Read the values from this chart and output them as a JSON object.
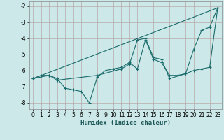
{
  "title": "",
  "xlabel": "Humidex (Indice chaleur)",
  "bg_color": "#cce8e8",
  "grid_color": "#b8a8a8",
  "line_color": "#1a6b6b",
  "xlim": [
    -0.5,
    23.5
  ],
  "ylim": [
    -8.4,
    -1.7
  ],
  "yticks": [
    -8,
    -7,
    -6,
    -5,
    -4,
    -3,
    -2
  ],
  "xticks": [
    0,
    1,
    2,
    3,
    4,
    5,
    6,
    7,
    8,
    9,
    10,
    11,
    12,
    13,
    14,
    15,
    16,
    17,
    18,
    19,
    20,
    21,
    22,
    23
  ],
  "series1_x": [
    0,
    1,
    2,
    3,
    4,
    5,
    6,
    7,
    8,
    9,
    10,
    11,
    12,
    13,
    14,
    15,
    16,
    17,
    18,
    19,
    20,
    21,
    22,
    23
  ],
  "series1_y": [
    -6.5,
    -6.3,
    -6.3,
    -6.5,
    -7.1,
    -7.2,
    -7.3,
    -8.0,
    -6.4,
    -6.0,
    -5.9,
    -5.8,
    -5.5,
    -5.9,
    -4.1,
    -5.3,
    -5.5,
    -6.3,
    -6.3,
    -6.2,
    -4.7,
    -3.5,
    -3.3,
    -2.1
  ],
  "series2_x": [
    0,
    2,
    3,
    8,
    11,
    12,
    13,
    14,
    15,
    16,
    17,
    19,
    20,
    21,
    22,
    23
  ],
  "series2_y": [
    -6.5,
    -6.3,
    -6.6,
    -6.3,
    -5.9,
    -5.6,
    -4.1,
    -4.0,
    -5.2,
    -5.3,
    -6.5,
    -6.2,
    -6.0,
    -5.9,
    -5.8,
    -2.1
  ],
  "series3_x": [
    0,
    23
  ],
  "series3_y": [
    -6.5,
    -2.1
  ]
}
